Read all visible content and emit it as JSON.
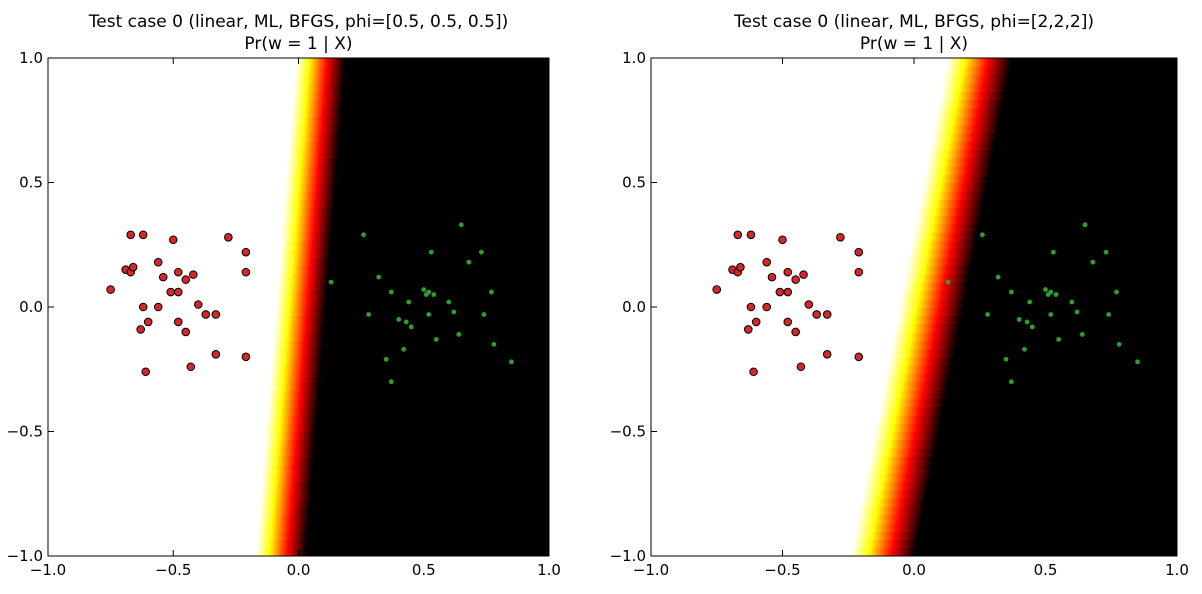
{
  "chart_data": [
    {
      "type": "heatmap",
      "title": "Test case 0 (linear, ML, BFGS, phi=[0.5, 0.5, 0.5])",
      "subtitle": "Pr(w = 1 | X)",
      "xlim": [
        -1.0,
        1.0
      ],
      "ylim": [
        -1.0,
        1.0
      ],
      "xticks": [
        "−1.0",
        "−0.5",
        "0.0",
        "0.5",
        "1.0"
      ],
      "yticks": [
        "−1.0",
        "−0.5",
        "0.0",
        "0.5",
        "1.0"
      ],
      "colormap": "hot (white = 0, black = 1)",
      "boundary": {
        "y_bottom": -1.0,
        "x_bottom": -0.08,
        "y_top": 1.0,
        "x_top": 0.08,
        "transition_width": 0.09
      },
      "series": [
        {
          "color": "#d62728",
          "marker": "large",
          "points": [
            [
              -0.67,
              0.29
            ],
            [
              -0.62,
              0.29
            ],
            [
              -0.5,
              0.27
            ],
            [
              -0.28,
              0.28
            ],
            [
              -0.21,
              0.22
            ],
            [
              -0.56,
              0.18
            ],
            [
              -0.69,
              0.15
            ],
            [
              -0.67,
              0.14
            ],
            [
              -0.66,
              0.16
            ],
            [
              -0.54,
              0.12
            ],
            [
              -0.48,
              0.14
            ],
            [
              -0.45,
              0.11
            ],
            [
              -0.42,
              0.13
            ],
            [
              -0.21,
              0.14
            ],
            [
              -0.75,
              0.07
            ],
            [
              -0.48,
              0.06
            ],
            [
              -0.51,
              0.06
            ],
            [
              -0.4,
              0.01
            ],
            [
              -0.62,
              0.0
            ],
            [
              -0.56,
              0.0
            ],
            [
              -0.37,
              -0.03
            ],
            [
              -0.33,
              -0.03
            ],
            [
              -0.6,
              -0.06
            ],
            [
              -0.48,
              -0.06
            ],
            [
              -0.63,
              -0.09
            ],
            [
              -0.45,
              -0.1
            ],
            [
              -0.33,
              -0.19
            ],
            [
              -0.21,
              -0.2
            ],
            [
              -0.61,
              -0.26
            ],
            [
              -0.43,
              -0.24
            ]
          ]
        },
        {
          "color": "#2ca02c",
          "marker": "small",
          "points": [
            [
              0.65,
              0.33
            ],
            [
              0.26,
              0.29
            ],
            [
              0.73,
              0.22
            ],
            [
              0.53,
              0.22
            ],
            [
              0.68,
              0.18
            ],
            [
              0.32,
              0.12
            ],
            [
              0.13,
              0.1
            ],
            [
              0.37,
              0.06
            ],
            [
              0.5,
              0.07
            ],
            [
              0.52,
              0.06
            ],
            [
              0.51,
              0.05
            ],
            [
              0.54,
              0.05
            ],
            [
              0.6,
              0.02
            ],
            [
              0.44,
              0.02
            ],
            [
              0.77,
              0.06
            ],
            [
              0.28,
              -0.03
            ],
            [
              0.4,
              -0.05
            ],
            [
              0.43,
              -0.06
            ],
            [
              0.52,
              -0.03
            ],
            [
              0.62,
              -0.02
            ],
            [
              0.74,
              -0.03
            ],
            [
              0.45,
              -0.08
            ],
            [
              0.55,
              -0.13
            ],
            [
              0.64,
              -0.11
            ],
            [
              0.78,
              -0.15
            ],
            [
              0.42,
              -0.17
            ],
            [
              0.35,
              -0.21
            ],
            [
              0.85,
              -0.22
            ],
            [
              0.37,
              -0.3
            ]
          ]
        }
      ]
    },
    {
      "type": "heatmap",
      "title": "Test case 0 (linear, ML, BFGS, phi=[2,2,2])",
      "subtitle": "Pr(w = 1 | X)",
      "xlim": [
        -1.0,
        1.0
      ],
      "ylim": [
        -1.0,
        1.0
      ],
      "xticks": [
        "−1.0",
        "−0.5",
        "0.0",
        "0.5",
        "1.0"
      ],
      "yticks": [
        "−1.0",
        "−0.5",
        "0.0",
        "0.5",
        "1.0"
      ],
      "colormap": "hot (white = 0, black = 1)",
      "boundary": {
        "y_bottom": -1.0,
        "x_bottom": -0.13,
        "y_top": 1.0,
        "x_top": 0.24,
        "transition_width": 0.11
      },
      "series": [
        {
          "color": "#d62728",
          "marker": "large",
          "points": [
            [
              -0.67,
              0.29
            ],
            [
              -0.62,
              0.29
            ],
            [
              -0.5,
              0.27
            ],
            [
              -0.28,
              0.28
            ],
            [
              -0.21,
              0.22
            ],
            [
              -0.56,
              0.18
            ],
            [
              -0.69,
              0.15
            ],
            [
              -0.67,
              0.14
            ],
            [
              -0.66,
              0.16
            ],
            [
              -0.54,
              0.12
            ],
            [
              -0.48,
              0.14
            ],
            [
              -0.45,
              0.11
            ],
            [
              -0.42,
              0.13
            ],
            [
              -0.21,
              0.14
            ],
            [
              -0.75,
              0.07
            ],
            [
              -0.48,
              0.06
            ],
            [
              -0.51,
              0.06
            ],
            [
              -0.4,
              0.01
            ],
            [
              -0.62,
              0.0
            ],
            [
              -0.56,
              0.0
            ],
            [
              -0.37,
              -0.03
            ],
            [
              -0.33,
              -0.03
            ],
            [
              -0.6,
              -0.06
            ],
            [
              -0.48,
              -0.06
            ],
            [
              -0.63,
              -0.09
            ],
            [
              -0.45,
              -0.1
            ],
            [
              -0.33,
              -0.19
            ],
            [
              -0.21,
              -0.2
            ],
            [
              -0.61,
              -0.26
            ],
            [
              -0.43,
              -0.24
            ]
          ]
        },
        {
          "color": "#2ca02c",
          "marker": "small",
          "points": [
            [
              0.65,
              0.33
            ],
            [
              0.26,
              0.29
            ],
            [
              0.73,
              0.22
            ],
            [
              0.53,
              0.22
            ],
            [
              0.68,
              0.18
            ],
            [
              0.32,
              0.12
            ],
            [
              0.13,
              0.1
            ],
            [
              0.37,
              0.06
            ],
            [
              0.5,
              0.07
            ],
            [
              0.52,
              0.06
            ],
            [
              0.51,
              0.05
            ],
            [
              0.54,
              0.05
            ],
            [
              0.6,
              0.02
            ],
            [
              0.44,
              0.02
            ],
            [
              0.77,
              0.06
            ],
            [
              0.28,
              -0.03
            ],
            [
              0.4,
              -0.05
            ],
            [
              0.43,
              -0.06
            ],
            [
              0.52,
              -0.03
            ],
            [
              0.62,
              -0.02
            ],
            [
              0.74,
              -0.03
            ],
            [
              0.45,
              -0.08
            ],
            [
              0.55,
              -0.13
            ],
            [
              0.64,
              -0.11
            ],
            [
              0.78,
              -0.15
            ],
            [
              0.42,
              -0.17
            ],
            [
              0.35,
              -0.21
            ],
            [
              0.85,
              -0.22
            ],
            [
              0.37,
              -0.3
            ]
          ]
        }
      ]
    }
  ]
}
